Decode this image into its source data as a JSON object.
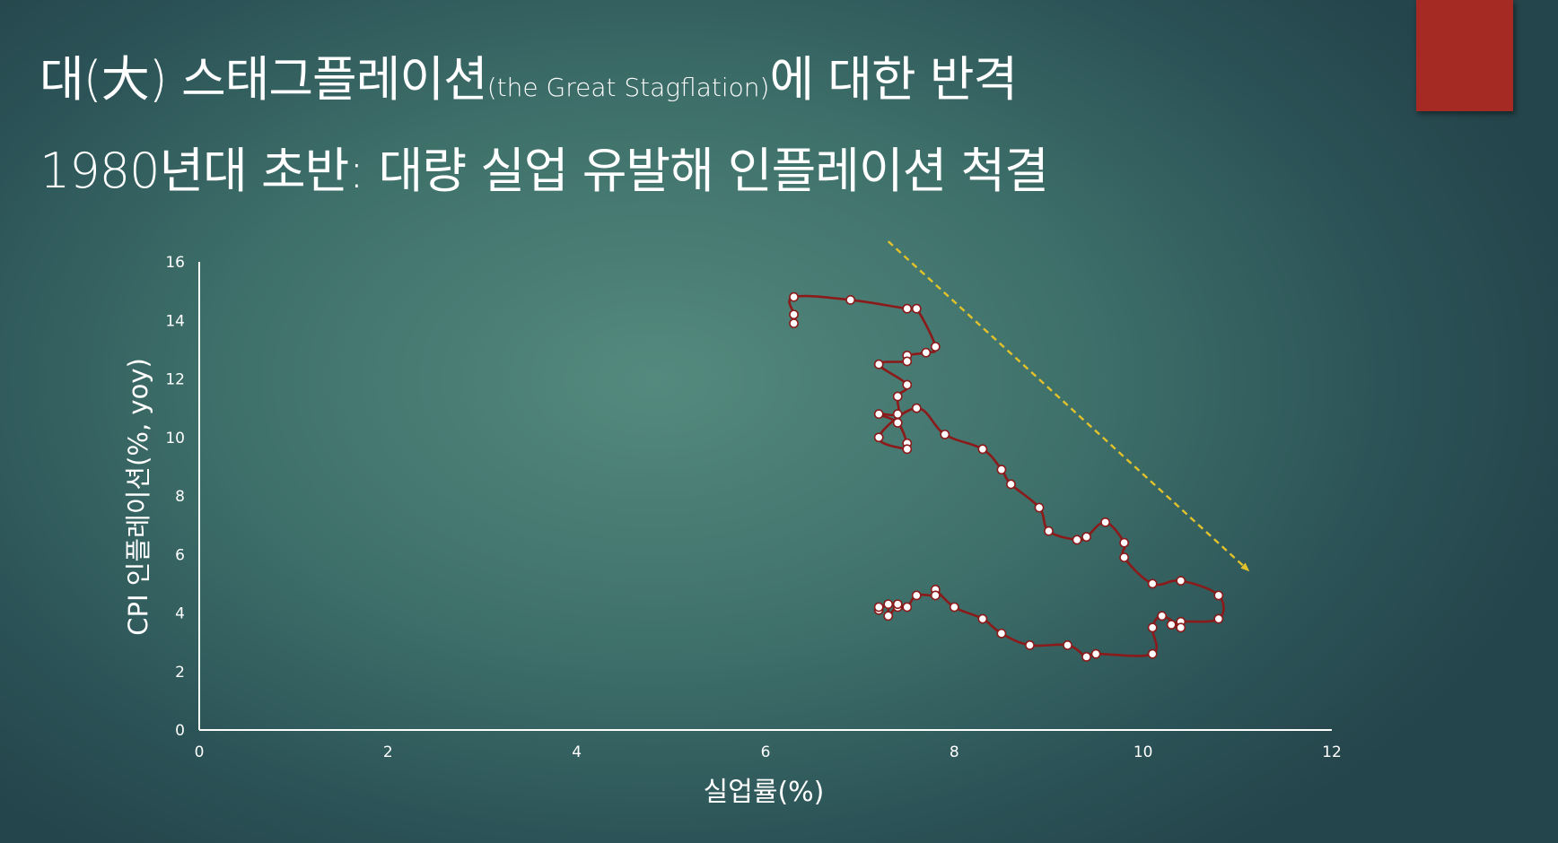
{
  "slide": {
    "title_line1": {
      "main": "대(大) 스태그플레이션",
      "aside": "(the Great Stagflation)",
      "tail": "에 대한 반격"
    },
    "title_line2": "1980년대 초반: 대량 실업 유발해 인플레이션 척결",
    "accent_color": "#a52a23"
  },
  "chart_data": {
    "type": "line",
    "xlabel": "실업률(%)",
    "ylabel": "CPI 인플레이션(%, yoy)",
    "xlim": [
      0,
      12
    ],
    "ylim": [
      0,
      16
    ],
    "x_ticks": [
      0,
      2,
      4,
      6,
      8,
      10,
      12
    ],
    "y_ticks": [
      0,
      2,
      4,
      6,
      8,
      10,
      12,
      14,
      16
    ],
    "grid": false,
    "line_color": "#8b1a1a",
    "marker_color": "#ffffff",
    "trend_arrow": {
      "color": "#e2c22a",
      "style": "dashed",
      "direction": "down-right",
      "from": [
        7.3,
        16.7
      ],
      "to": [
        11.1,
        5.5
      ]
    },
    "series": [
      {
        "points": [
          [
            6.3,
            13.9
          ],
          [
            6.3,
            14.2
          ],
          [
            6.3,
            14.8
          ],
          [
            6.9,
            14.7
          ],
          [
            7.5,
            14.4
          ],
          [
            7.6,
            14.4
          ],
          [
            7.8,
            13.1
          ],
          [
            7.7,
            12.9
          ],
          [
            7.5,
            12.8
          ],
          [
            7.5,
            12.6
          ],
          [
            7.2,
            12.5
          ],
          [
            7.5,
            11.8
          ],
          [
            7.4,
            11.4
          ],
          [
            7.4,
            10.8
          ],
          [
            7.2,
            10.8
          ],
          [
            7.4,
            10.5
          ],
          [
            7.5,
            9.8
          ],
          [
            7.5,
            9.6
          ],
          [
            7.2,
            10.0
          ],
          [
            7.6,
            11.0
          ],
          [
            7.9,
            10.1
          ],
          [
            8.3,
            9.6
          ],
          [
            8.5,
            8.9
          ],
          [
            8.6,
            8.4
          ],
          [
            8.9,
            7.6
          ],
          [
            9.0,
            6.8
          ],
          [
            9.3,
            6.5
          ],
          [
            9.4,
            6.6
          ],
          [
            9.6,
            7.1
          ],
          [
            9.8,
            6.4
          ],
          [
            9.8,
            5.9
          ],
          [
            10.1,
            5.0
          ],
          [
            10.4,
            5.1
          ],
          [
            10.8,
            4.6
          ],
          [
            10.8,
            3.8
          ],
          [
            10.4,
            3.7
          ],
          [
            10.3,
            3.6
          ],
          [
            10.4,
            3.5
          ],
          [
            10.2,
            3.9
          ],
          [
            10.1,
            3.5
          ],
          [
            10.1,
            2.6
          ],
          [
            9.5,
            2.6
          ],
          [
            9.4,
            2.5
          ],
          [
            9.2,
            2.9
          ],
          [
            8.8,
            2.9
          ],
          [
            8.5,
            3.3
          ],
          [
            8.3,
            3.8
          ],
          [
            8.0,
            4.2
          ],
          [
            7.8,
            4.8
          ],
          [
            7.8,
            4.6
          ],
          [
            7.6,
            4.6
          ],
          [
            7.5,
            4.2
          ],
          [
            7.4,
            4.2
          ],
          [
            7.4,
            4.3
          ],
          [
            7.3,
            3.9
          ],
          [
            7.3,
            4.3
          ],
          [
            7.2,
            4.1
          ],
          [
            7.2,
            4.2
          ]
        ]
      }
    ]
  }
}
